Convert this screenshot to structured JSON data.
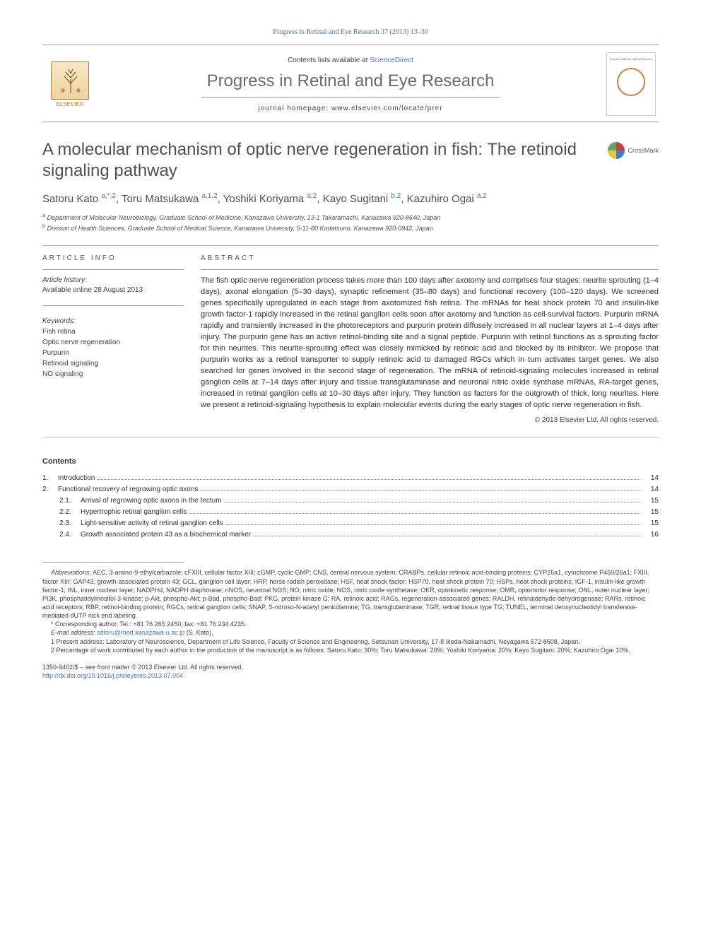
{
  "journal_ref": "Progress in Retinal and Eye Research 37 (2013) 13–30",
  "header": {
    "elsevier_label": "ELSEVIER",
    "contents_prefix": "Contents lists available at ",
    "contents_link": "ScienceDirect",
    "journal_title": "Progress in Retinal and Eye Research",
    "homepage_label": "journal homepage: www.elsevier.com/locate/prer",
    "cover_title": "Progress in Retinal and Eye Research"
  },
  "crossmark_label": "CrossMark",
  "article": {
    "title": "A molecular mechanism of optic nerve regeneration in fish: The retinoid signaling pathway",
    "authors_parts": [
      {
        "name": "Satoru Kato",
        "sup": "a,*,2"
      },
      {
        "name": "Toru Matsukawa",
        "sup": "a,1,2"
      },
      {
        "name": "Yoshiki Koriyama",
        "sup": "a,2"
      },
      {
        "name": "Kayo Sugitani",
        "sup": "b,2"
      },
      {
        "name": "Kazuhiro Ogai",
        "sup": "a,2"
      }
    ],
    "affiliations": [
      {
        "sup": "a",
        "text": "Department of Molecular Neurobiology, Graduate School of Medicine, Kanazawa University, 13-1 Takaramachi, Kanazawa 920-8640, Japan"
      },
      {
        "sup": "b",
        "text": "Division of Health Sciences, Graduate School of Medical Science, Kanazawa University, 5-11-80 Kodatsuno, Kanazawa 920-0942, Japan"
      }
    ]
  },
  "info": {
    "section_label": "article info",
    "history_label": "Article history:",
    "history_text": "Available online 28 August 2013",
    "keywords_label": "Keywords:",
    "keywords": [
      "Fish retina",
      "Optic nerve regeneration",
      "Purpurin",
      "Retinoid signaling",
      "NO signaling"
    ]
  },
  "abstract": {
    "section_label": "abstract",
    "text": "The fish optic nerve regeneration process takes more than 100 days after axotomy and comprises four stages: neurite sprouting (1–4 days), axonal elongation (5–30 days), synaptic refinement (35–80 days) and functional recovery (100–120 days). We screened genes specifically upregulated in each stage from axotomized fish retina. The mRNAs for heat shock protein 70 and insulin-like growth factor-1 rapidly increased in the retinal ganglion cells soon after axotomy and function as cell-survival factors. Purpurin mRNA rapidly and transiently increased in the photoreceptors and purpurin protein diffusely increased in all nuclear layers at 1–4 days after injury. The purpurin gene has an active retinol-binding site and a signal peptide. Purpurin with retinol functions as a sprouting factor for thin neurites. This neurite-sprouting effect was closely mimicked by retinoic acid and blocked by its inhibitor. We propose that purpurin works as a retinol transporter to supply retinoic acid to damaged RGCs which in turn activates target genes. We also searched for genes involved in the second stage of regeneration. The mRNA of retinoid-signaling molecules increased in retinal ganglion cells at 7–14 days after injury and tissue transglutaminase and neuronal nitric oxide synthase mRNAs, RA-target genes, increased in retinal ganglion cells at 10–30 days after injury. They function as factors for the outgrowth of thick, long neurites. Here we present a retinoid-signaling hypothesis to explain molecular events during the early stages of optic nerve regeneration in fish.",
    "copyright": "© 2013 Elsevier Ltd. All rights reserved."
  },
  "contents": {
    "heading": "Contents",
    "items": [
      {
        "num": "1.",
        "title": "Introduction",
        "page": "14"
      },
      {
        "num": "2.",
        "title": "Functional recovery of regrowing optic axons",
        "page": "14"
      },
      {
        "num": "2.1.",
        "title": "Arrival of regrowing optic axons in the tectum",
        "page": "15",
        "sub": true
      },
      {
        "num": "2.2.",
        "title": "Hypertrophic retinal ganglion cells",
        "page": "15",
        "sub": true
      },
      {
        "num": "2.3.",
        "title": "Light-sensitive activity of retinal ganglion cells",
        "page": "15",
        "sub": true
      },
      {
        "num": "2.4.",
        "title": "Growth associated protein 43 as a biochemical marker",
        "page": "16",
        "sub": true
      }
    ]
  },
  "footnotes": {
    "abbrev_label": "Abbreviations:",
    "abbrev_text": " AEC, 3-amino-9-ethylcarbazole; cFXIII, cellular factor XIII; cGMP, cyclic GMP; CNS, central nervous system; CRABPs, cellular retinoic acid-binding proteins; CYP26a1, cytochrome P450/26a1; FXIII, factor XIII; GAP43, growth-associated protein 43; GCL, ganglion cell layer; HRP, horse radish peroxidase; HSF, heat shock factor; HSP70, heat shock protein 70; HSPs, heat shock proteins; IGF-1, insulin-like growth factor-1; INL, inner nuclear layer; NADPHd, NADPH diaphorase; nNOS, neuronal NOS; NO, nitric oxide; NOS, nitric oxide synthetase; OKR, optokinetic response; OMR, optomotor response; ONL, outer nuclear layer; PI3K, phosphatidylinositol-3-kinase; p-Akt, phospho-Akt; p-Bad, phospho-Bad; PKG, protein kinase G; RA, retinoic acid; RAGs, regeneration-associated genes; RALDH, retinaldehyde dehydrogenase; RARs, retinoic acid receptors; RBP, retinol-binding protein; RGCs, retinal ganglion cells; SNAP, S-nitroso-N-acetyl penicillamine; TG, transglutaminase; TGR, retinal tissue type TG; TUNEL, terminal deoxynucleotidyl transferase-mediated dUTP nick end labeling.",
    "corresponding": "* Corresponding author. Tel.: +81 76 265 2450; fax: +81 76 234 4235.",
    "email_label": "E-mail address: ",
    "email": "satoru@med.kanazawa-u.ac.jp",
    "email_name": " (S. Kato).",
    "note1": "1 Present address: Laboratory of Neuroscience, Department of Life Science, Faculty of Science and Engineering, Setsunan University, 17-8 Ikeda-Nakamachi, Neyagawa 572-8508, Japan.",
    "note2": "2 Percentage of work contributed by each author in the production of the manuscript is as follows: Satoru Kato: 30%; Toru Matsukawa: 20%; Yoshiki Koriyama: 20%; Kayo Sugitani: 20%; Kazuhiro Ogai 10%."
  },
  "footer": {
    "issn_line": "1350-9462/$ – see front matter © 2013 Elsevier Ltd. All rights reserved.",
    "doi": "http://dx.doi.org/10.1016/j.preteyeres.2013.07.004"
  },
  "colors": {
    "link": "#4876b8",
    "text": "#333333",
    "heading": "#505050",
    "rule": "#999999"
  }
}
